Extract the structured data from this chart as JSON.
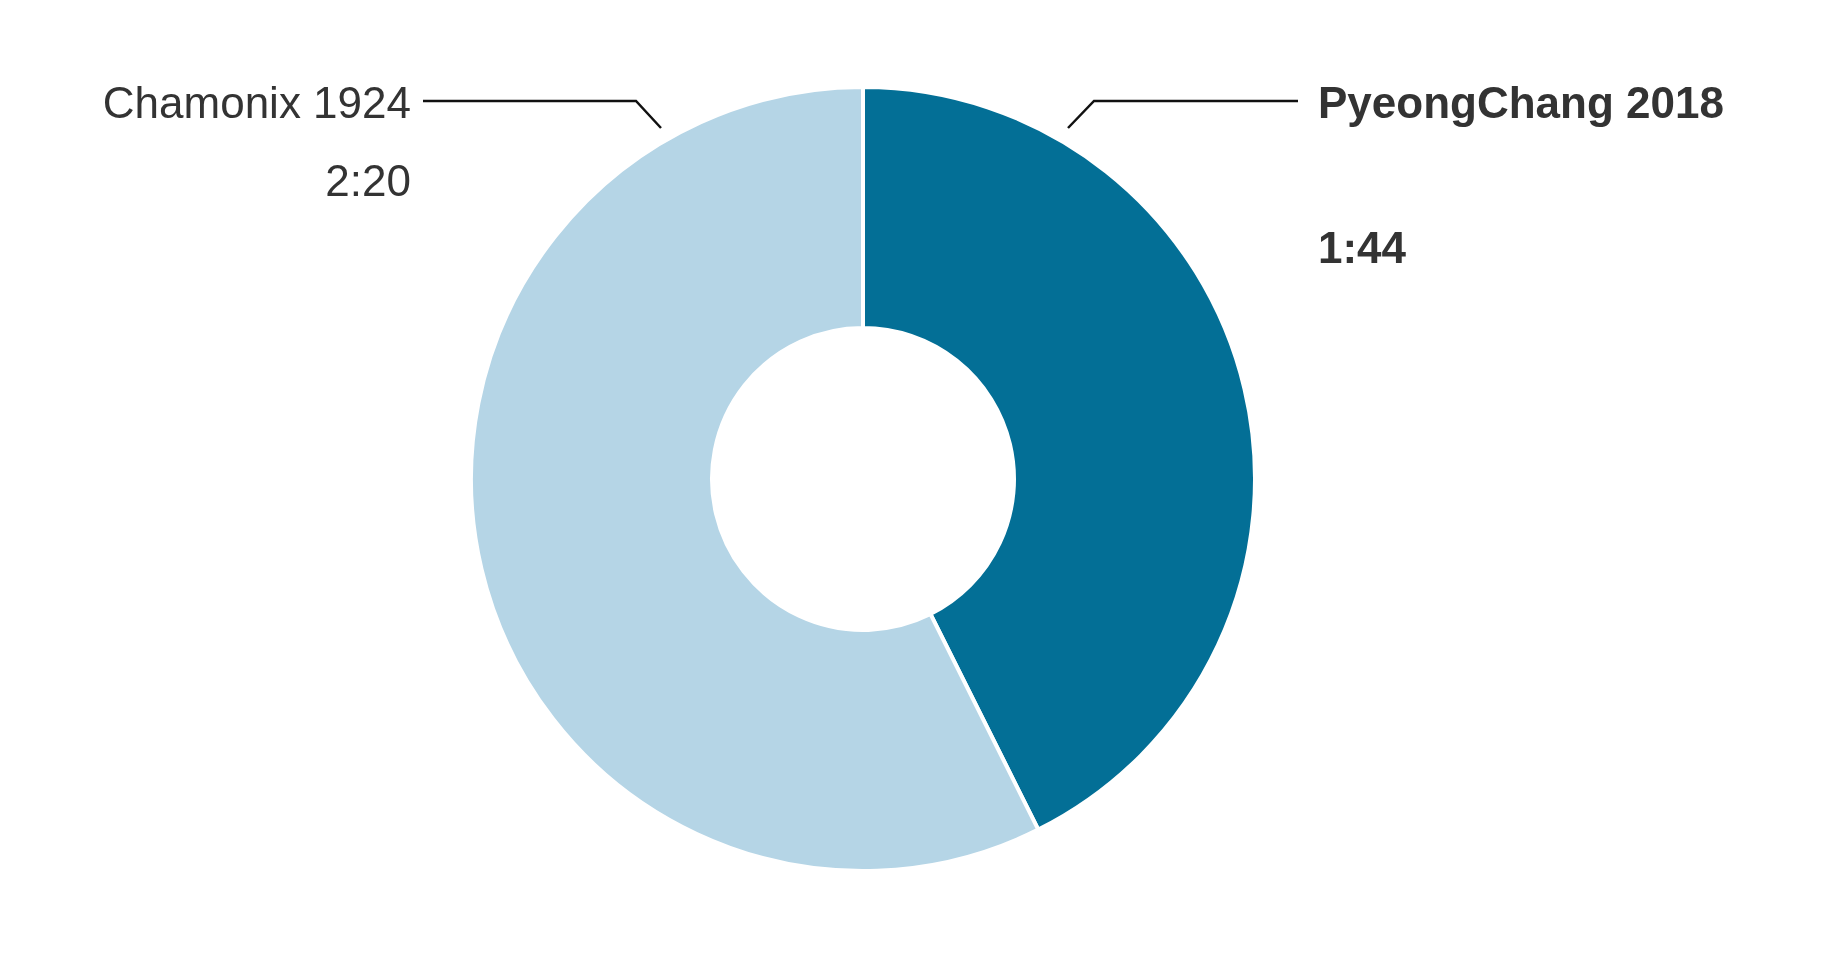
{
  "chart_data": {
    "type": "donut",
    "categories": [
      "PyeongChang 2018",
      "Chamonix 1924"
    ],
    "values": [
      104,
      140
    ],
    "value_labels": [
      "1:44",
      "2:20"
    ],
    "colors": [
      "#036f96",
      "#b5d5e6"
    ]
  }
}
